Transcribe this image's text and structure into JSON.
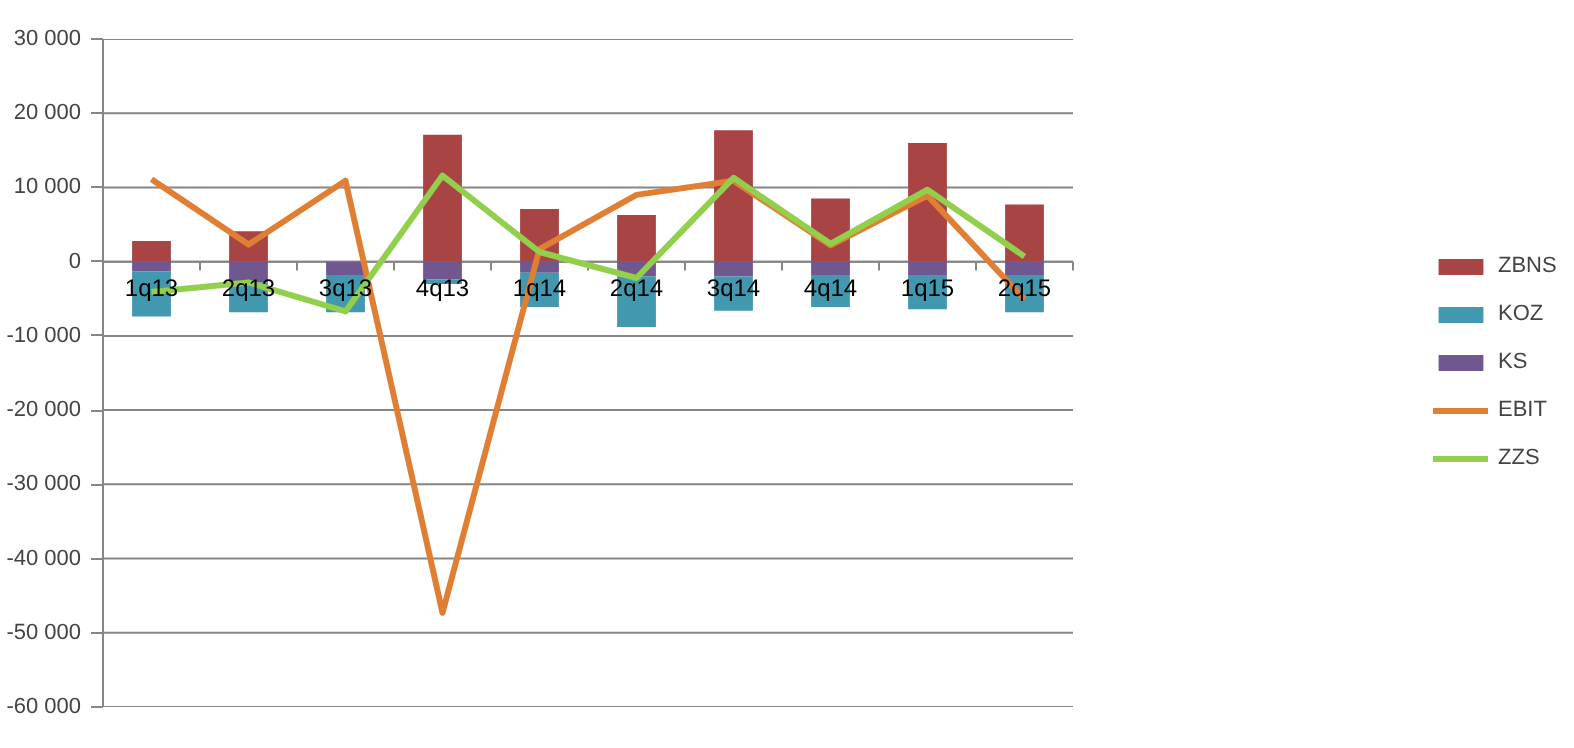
{
  "chart_data": {
    "type": "bar",
    "stacked": true,
    "categories": [
      "1q13",
      "2q13",
      "3q13",
      "4q13",
      "1q14",
      "2q14",
      "3q14",
      "4q14",
      "1q15",
      "2q15"
    ],
    "series": [
      {
        "name": "KS",
        "color": "#70578f",
        "values": [
          -1300,
          -2800,
          -1800,
          -2400,
          -1500,
          -2000,
          -2000,
          -1800,
          -1800,
          -1800
        ]
      },
      {
        "name": "KOZ",
        "color": "#4298ae",
        "values": [
          -6100,
          -4000,
          -5000,
          -600,
          -4600,
          -6800,
          -4600,
          -4300,
          -4600,
          -5000
        ]
      },
      {
        "name": "ZBNS",
        "color": "#a84444",
        "values": [
          2800,
          4100,
          0,
          17100,
          7100,
          6300,
          17700,
          8500,
          16000,
          7700
        ]
      },
      {
        "name": "EBIT",
        "type": "line",
        "color": "#e07f33",
        "values": [
          11100,
          2300,
          10900,
          -47300,
          1700,
          9000,
          10900,
          2200,
          8900,
          -5100
        ]
      },
      {
        "name": "ZZS",
        "type": "line",
        "color": "#92cf4c",
        "values": [
          -4100,
          -2800,
          -6700,
          11600,
          1300,
          -2200,
          11300,
          2400,
          9700,
          700
        ]
      }
    ],
    "ylim": [
      -60000,
      30000
    ],
    "yticks": [
      {
        "value": -60000,
        "label": "-60 000"
      },
      {
        "value": -50000,
        "label": "-50 000"
      },
      {
        "value": -40000,
        "label": "-40 000"
      },
      {
        "value": -30000,
        "label": "-30 000"
      },
      {
        "value": -20000,
        "label": "-20 000"
      },
      {
        "value": -10000,
        "label": "-10 000"
      },
      {
        "value": 0,
        "label": "0"
      },
      {
        "value": 10000,
        "label": "10 000"
      },
      {
        "value": 20000,
        "label": "20 000"
      },
      {
        "value": 30000,
        "label": "30 000"
      }
    ],
    "grid": "y",
    "legend": "right"
  }
}
